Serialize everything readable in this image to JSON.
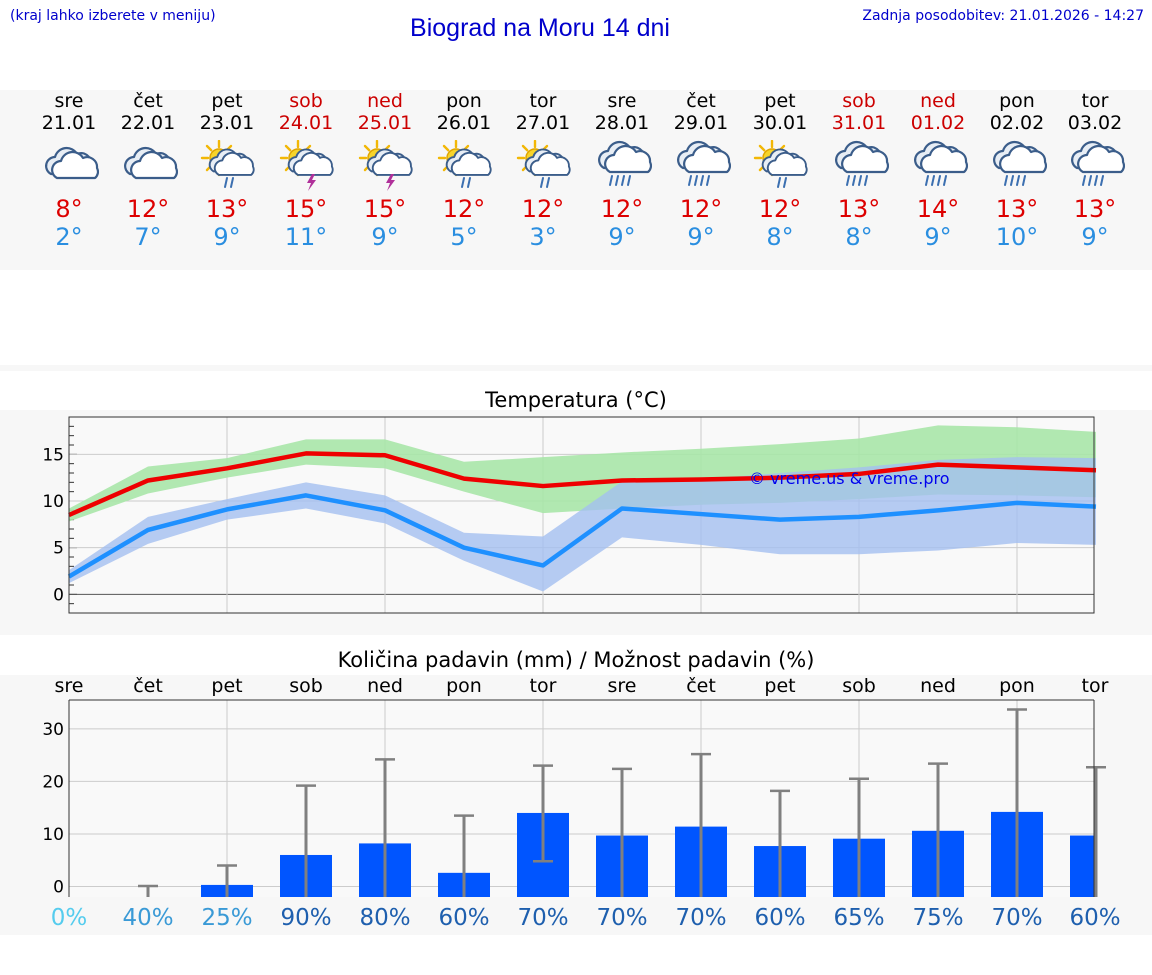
{
  "header": {
    "location_note": "(kraj lahko izberete v meniju)",
    "title": "Biograd na Moru 14 dni",
    "updated": "Zadnja posodobitev: 21.01.2026 - 14:27"
  },
  "days": [
    {
      "dow": "sre",
      "date": "21.01",
      "icon": "cloudy-icon",
      "tmax": "8°",
      "tmin": "2°",
      "weekend": false
    },
    {
      "dow": "čet",
      "date": "22.01",
      "icon": "cloudy-icon",
      "tmax": "12°",
      "tmin": "7°",
      "weekend": false
    },
    {
      "dow": "pet",
      "date": "23.01",
      "icon": "sun-cloud-rain-icon",
      "tmax": "13°",
      "tmin": "9°",
      "weekend": false
    },
    {
      "dow": "sob",
      "date": "24.01",
      "icon": "sun-cloud-thunder-icon",
      "tmax": "15°",
      "tmin": "11°",
      "weekend": true
    },
    {
      "dow": "ned",
      "date": "25.01",
      "icon": "sun-cloud-thunder-icon",
      "tmax": "15°",
      "tmin": "9°",
      "weekend": true
    },
    {
      "dow": "pon",
      "date": "26.01",
      "icon": "sun-cloud-rain-icon",
      "tmax": "12°",
      "tmin": "5°",
      "weekend": false
    },
    {
      "dow": "tor",
      "date": "27.01",
      "icon": "sun-cloud-rain-icon",
      "tmax": "12°",
      "tmin": "3°",
      "weekend": false
    },
    {
      "dow": "sre",
      "date": "28.01",
      "icon": "cloud-heavy-rain-icon",
      "tmax": "12°",
      "tmin": "9°",
      "weekend": false
    },
    {
      "dow": "čet",
      "date": "29.01",
      "icon": "cloud-heavy-rain-icon",
      "tmax": "12°",
      "tmin": "9°",
      "weekend": false
    },
    {
      "dow": "pet",
      "date": "30.01",
      "icon": "sun-cloud-rain-icon",
      "tmax": "12°",
      "tmin": "8°",
      "weekend": false
    },
    {
      "dow": "sob",
      "date": "31.01",
      "icon": "cloud-heavy-rain-icon",
      "tmax": "13°",
      "tmin": "8°",
      "weekend": true
    },
    {
      "dow": "ned",
      "date": "01.02",
      "icon": "cloud-heavy-rain-icon",
      "tmax": "14°",
      "tmin": "9°",
      "weekend": true
    },
    {
      "dow": "pon",
      "date": "02.02",
      "icon": "cloud-heavy-rain-icon",
      "tmax": "13°",
      "tmin": "10°",
      "weekend": false
    },
    {
      "dow": "tor",
      "date": "03.02",
      "icon": "cloud-heavy-rain-icon",
      "tmax": "13°",
      "tmin": "9°",
      "weekend": false
    }
  ],
  "colors": {
    "max_line": "#ee0000",
    "min_line": "#1e90ff",
    "max_band": "#a8e6a8",
    "min_band": "#a4bff0",
    "bar": "#0055ff",
    "whisker": "#808080"
  },
  "watermark": "© vreme.us & vreme.pro",
  "chart_data": [
    {
      "type": "line",
      "title": "Temperatura (°C)",
      "ylim": [
        -2,
        19
      ],
      "yticks": [
        "0",
        "5",
        "10",
        "15"
      ],
      "grid": true,
      "series": [
        {
          "name": "max",
          "values": [
            8.5,
            12.2,
            13.5,
            15.1,
            14.9,
            12.4,
            11.6,
            12.2,
            12.3,
            12.5,
            12.9,
            13.9,
            13.6,
            13.3
          ],
          "band_low": [
            7.8,
            10.8,
            12.5,
            13.9,
            13.5,
            11.0,
            8.7,
            9.2,
            9.6,
            9.8,
            10.2,
            10.7,
            10.6,
            10.4
          ],
          "band_high": [
            9.2,
            13.7,
            14.6,
            16.6,
            16.6,
            14.2,
            14.7,
            15.2,
            15.6,
            16.1,
            16.7,
            18.1,
            17.9,
            17.4
          ]
        },
        {
          "name": "min",
          "values": [
            1.9,
            6.9,
            9.1,
            10.6,
            9.0,
            5.0,
            3.1,
            9.2,
            8.6,
            8.0,
            8.3,
            9.0,
            9.8,
            9.4
          ],
          "band_low": [
            1.2,
            5.4,
            8.0,
            9.2,
            7.6,
            3.6,
            0.3,
            6.1,
            5.3,
            4.3,
            4.3,
            4.7,
            5.5,
            5.3
          ],
          "band_high": [
            2.6,
            8.3,
            10.2,
            12.0,
            10.6,
            6.6,
            6.2,
            12.1,
            12.3,
            13.0,
            13.6,
            14.4,
            14.7,
            14.6
          ]
        }
      ]
    },
    {
      "type": "bar",
      "title": "Količina padavin (mm) / Možnost padavin (%)",
      "categories": [
        "sre",
        "čet",
        "pet",
        "sob",
        "ned",
        "pon",
        "tor",
        "sre",
        "čet",
        "pet",
        "sob",
        "ned",
        "pon",
        "tor"
      ],
      "values": [
        0,
        0,
        0.3,
        6,
        8.2,
        2.6,
        14,
        9.7,
        11.4,
        7.7,
        9.1,
        10.6,
        14.2,
        9.7
      ],
      "err_low": [
        0,
        0,
        0,
        0,
        0,
        0,
        4.8,
        0,
        0,
        0,
        0,
        0,
        0,
        0
      ],
      "err_high": [
        0,
        0.1,
        4,
        19.2,
        24.2,
        13.5,
        23,
        22.4,
        25.2,
        18.2,
        20.5,
        23.4,
        33.7,
        22.7
      ],
      "ylim": [
        -2,
        35.5
      ],
      "yticks": [
        "0",
        "10",
        "20",
        "30"
      ],
      "probabilities": [
        "0%",
        "40%",
        "25%",
        "90%",
        "80%",
        "60%",
        "70%",
        "70%",
        "70%",
        "60%",
        "65%",
        "75%",
        "70%",
        "60%"
      ],
      "prob_colors": [
        "#55ccee",
        "#3a9ad6",
        "#3a9ad6",
        "#1e5fae",
        "#1e5fae",
        "#1e5fae",
        "#1e5fae",
        "#1e5fae",
        "#1e5fae",
        "#1e5fae",
        "#1e5fae",
        "#1e5fae",
        "#1e5fae",
        "#1e5fae"
      ]
    }
  ]
}
